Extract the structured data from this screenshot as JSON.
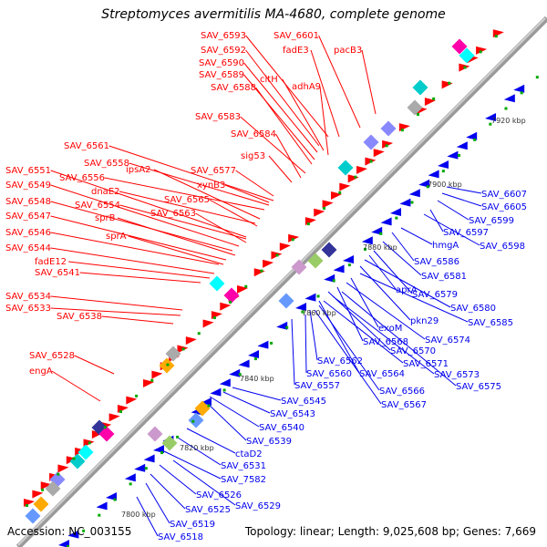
{
  "title": "Streptomyces avermitilis MA-4680, complete genome",
  "footer": {
    "accession": "Accession: NC_003155",
    "info": "Topology: linear; Length: 9,025,608 bp; Genes: 7,669"
  },
  "colors": {
    "forward": "#ff0000",
    "reverse": "#0000ee",
    "axis": "#999999",
    "tick": "#00aa00"
  },
  "ruler_labels": [
    "7800 kbp",
    "7820 kbp",
    "7840 kbp",
    "7860 kbp",
    "7880 kbp",
    "7900 kbp",
    "7920 kbp"
  ],
  "forward_labels": [
    "SAV_6601",
    "SAV_6593",
    "fadE3",
    "pacB3",
    "SAV_6592",
    "SAV_6590",
    "SAV_6589",
    "citH",
    "SAV_6588",
    "adhA9",
    "SAV_6583",
    "SAV_6584",
    "SAV_6561",
    "sig53",
    "SAV_6558",
    "SAV_6556",
    "SAV_6577",
    "xynB3",
    "ipsA2",
    "dnaE2",
    "SAV_6565",
    "SAV_6551",
    "SAV_6554",
    "SAV_6563",
    "SAV_6549",
    "SAV_6548",
    "sprB",
    "SAV_6547",
    "sprA",
    "SAV_6546",
    "SAV_6544",
    "fadE12",
    "SAV_6541",
    "SAV_6534",
    "SAV_6533",
    "SAV_6538",
    "SAV_6528",
    "engA"
  ],
  "reverse_labels": [
    "SAV_6607",
    "SAV_6605",
    "SAV_6599",
    "SAV_6597",
    "SAV_6598",
    "hmgA",
    "SAV_6586",
    "SAV_6581",
    "SAV_6579",
    "aprA",
    "SAV_6580",
    "pkn29",
    "SAV_6585",
    "exoM",
    "SAV_6568",
    "SAV_6574",
    "SAV_6570",
    "SAV_6571",
    "SAV_6562",
    "SAV_6560",
    "SAV_6564",
    "SAV_6573",
    "SAV_6557",
    "SAV_6566",
    "SAV_6575",
    "SAV_6567",
    "SAV_6545",
    "SAV_6543",
    "SAV_6540",
    "SAV_6539",
    "ctaD2",
    "SAV_6531",
    "SAV_7582",
    "SAV_6526",
    "SAV_6529",
    "SAV_6525",
    "SAV_6519",
    "SAV_6518"
  ]
}
